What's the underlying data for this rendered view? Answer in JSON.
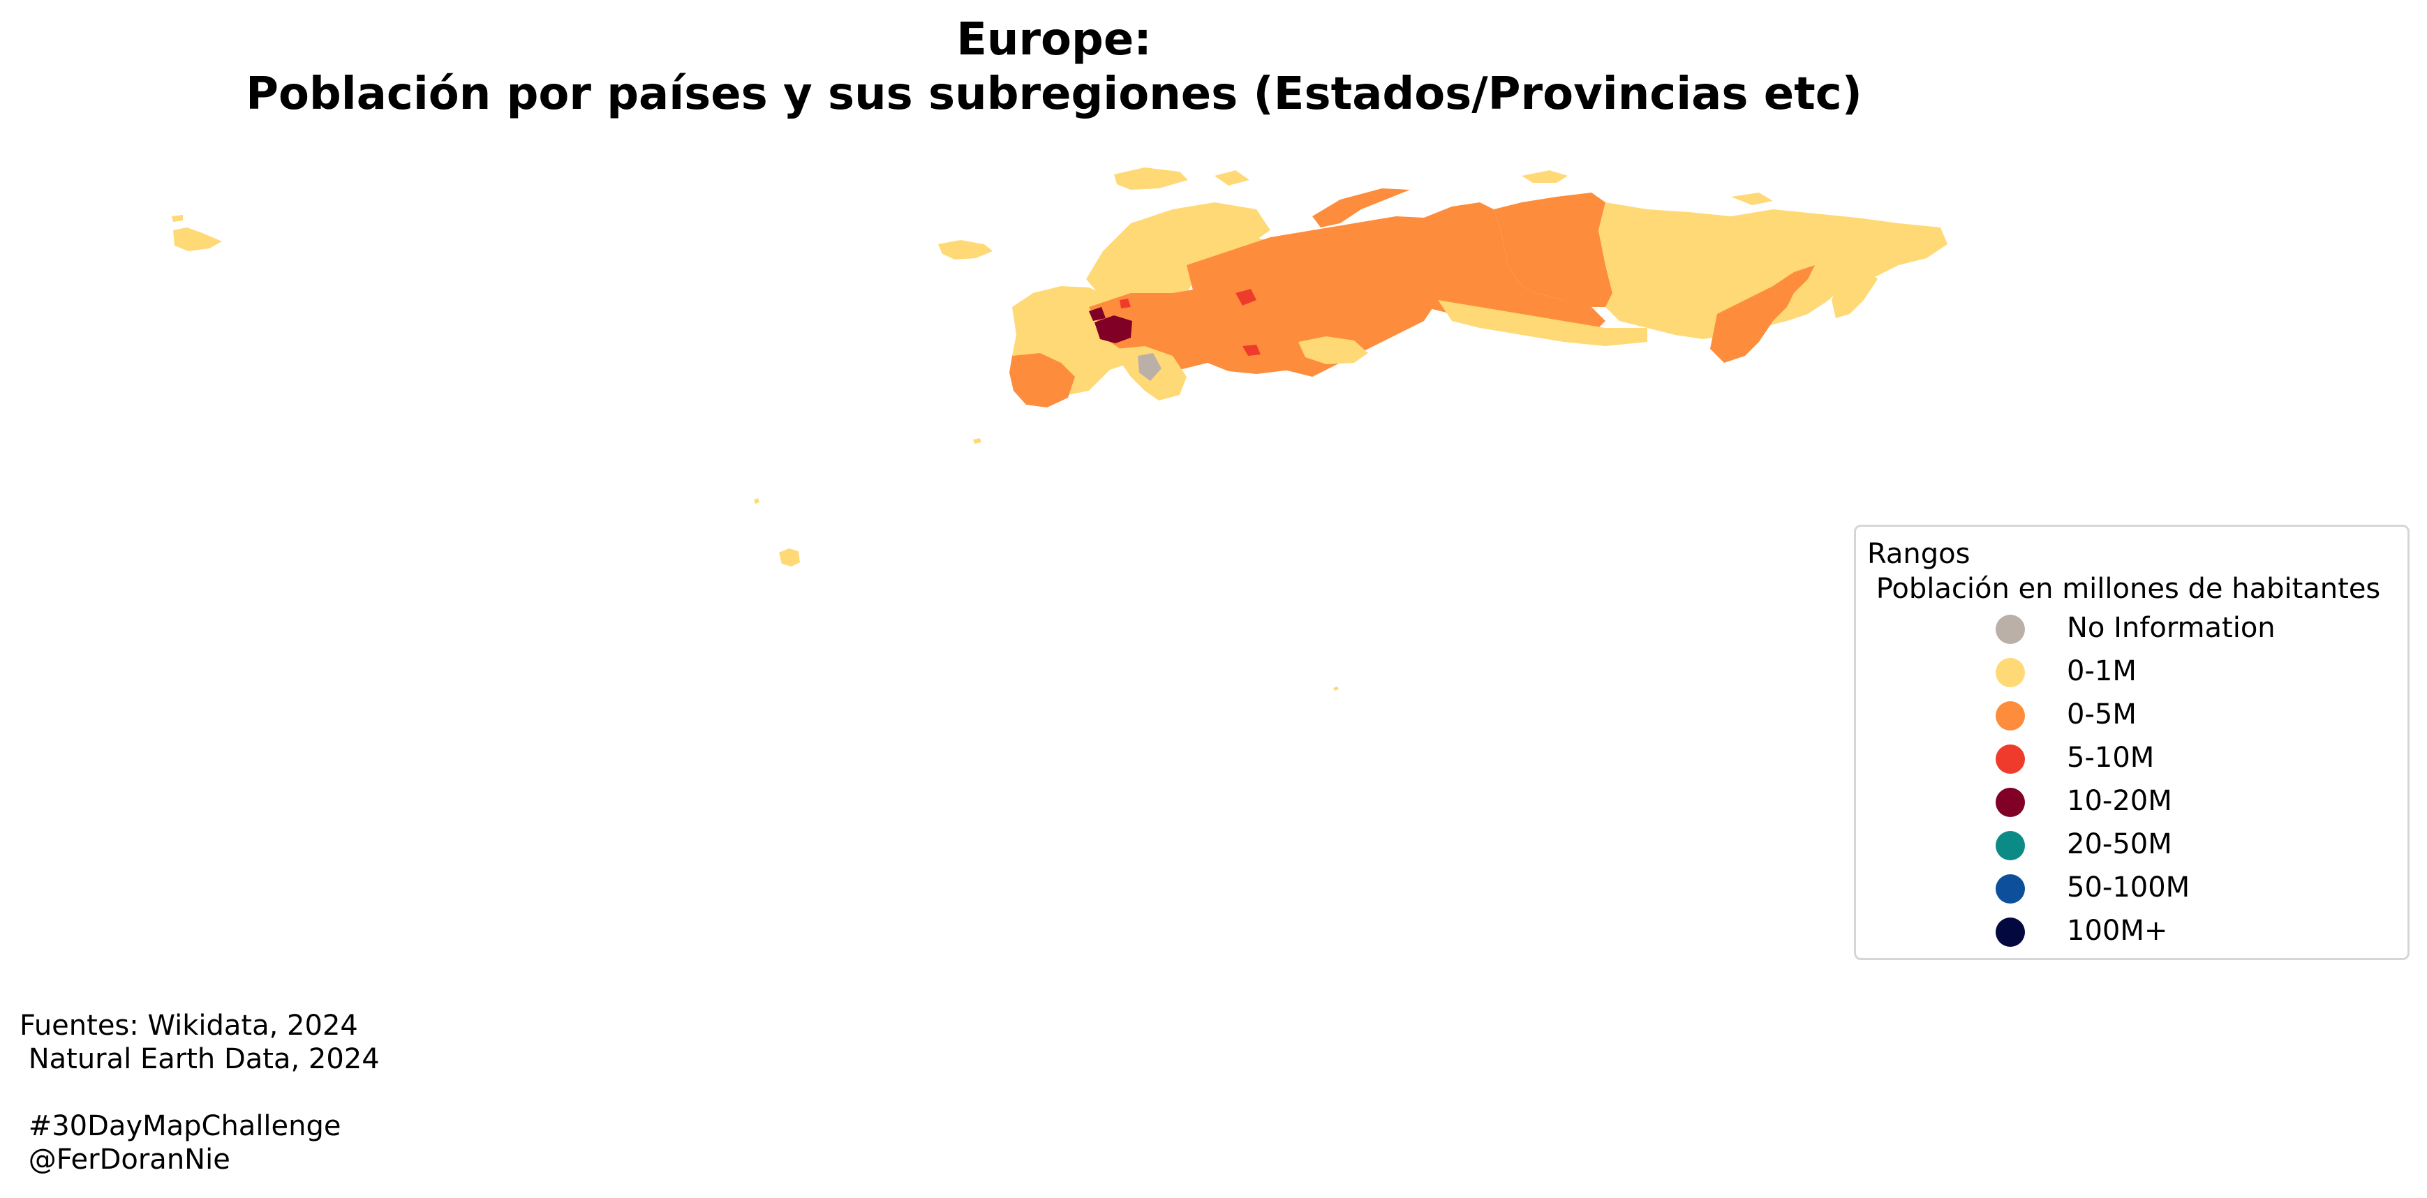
{
  "title": {
    "line1": "Europe:",
    "line2": "Población por países y sus subregiones (Estados/Provincias etc)"
  },
  "legend": {
    "title": "Rangos\n Población en millones de habitantes",
    "items": [
      {
        "label": "No Information",
        "color": "#bbb0a8"
      },
      {
        "label": "0-1M",
        "color": "#fed976"
      },
      {
        "label": "0-5M",
        "color": "#fd8d3c"
      },
      {
        "label": "5-10M",
        "color": "#ef3b2c"
      },
      {
        "label": "10-20M",
        "color": "#800026"
      },
      {
        "label": "20-50M",
        "color": "#0b8a86"
      },
      {
        "label": "50-100M",
        "color": "#0d4f9a"
      },
      {
        "label": "100M+",
        "color": "#03083f"
      }
    ]
  },
  "footer": "Fuentes: Wikidata, 2024\n Natural Earth Data, 2024\n\n #30DayMapChallenge\n @FerDoranNie"
}
